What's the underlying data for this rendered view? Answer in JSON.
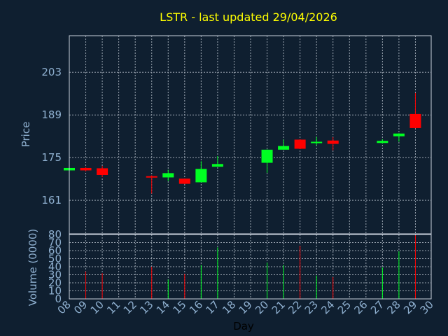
{
  "colors": {
    "background": "#0f1f30",
    "frame": "#c8d0dc",
    "grid": "#9aa4b0",
    "up": "#00ff22",
    "down": "#ff0000",
    "title": "#ffff00",
    "tick_label": "#8fb0d0"
  },
  "chart_data": {
    "type": "candlestick",
    "title": "LSTR - last updated 29/04/2026",
    "xlabel": "Day",
    "price_axis": {
      "label": "Price",
      "ticks": [
        161,
        175,
        189,
        203
      ],
      "ylim": [
        150,
        215
      ]
    },
    "volume_axis": {
      "label": "Volume (0000)",
      "ticks": [
        0,
        10,
        20,
        30,
        40,
        50,
        60,
        70,
        80
      ],
      "ylim": [
        0,
        80
      ]
    },
    "x_ticks": [
      "08",
      "09",
      "10",
      "11",
      "12",
      "13",
      "14",
      "15",
      "16",
      "17",
      "18",
      "19",
      "20",
      "21",
      "22",
      "23",
      "24",
      "25",
      "26",
      "27",
      "28",
      "29",
      "30"
    ],
    "grid": true,
    "candles": [
      {
        "day": "08",
        "open": 170.8,
        "close": 171.6,
        "high": 171.8,
        "low": 170.6,
        "volume": 0
      },
      {
        "day": "09",
        "open": 171.6,
        "close": 170.8,
        "high": 171.9,
        "low": 170.5,
        "volume": 34
      },
      {
        "day": "10",
        "open": 171.5,
        "close": 169.3,
        "high": 172.3,
        "low": 168.6,
        "volume": 32
      },
      {
        "day": "13",
        "open": 168.9,
        "close": 168.5,
        "high": 169.2,
        "low": 163.2,
        "volume": 40
      },
      {
        "day": "14",
        "open": 168.5,
        "close": 169.9,
        "high": 171.0,
        "low": 167.3,
        "volume": 24
      },
      {
        "day": "15",
        "open": 168.1,
        "close": 166.4,
        "high": 168.1,
        "low": 166.3,
        "volume": 31
      },
      {
        "day": "16",
        "open": 166.9,
        "close": 171.3,
        "high": 173.8,
        "low": 166.9,
        "volume": 42
      },
      {
        "day": "17",
        "open": 172.0,
        "close": 172.9,
        "high": 175.5,
        "low": 172.0,
        "volume": 64
      },
      {
        "day": "20",
        "open": 173.3,
        "close": 177.6,
        "high": 177.7,
        "low": 170.0,
        "volume": 45
      },
      {
        "day": "21",
        "open": 177.6,
        "close": 178.8,
        "high": 180.9,
        "low": 177.6,
        "volume": 42
      },
      {
        "day": "22",
        "open": 180.9,
        "close": 177.9,
        "high": 181.0,
        "low": 177.8,
        "volume": 66
      },
      {
        "day": "23",
        "open": 179.8,
        "close": 180.2,
        "high": 181.8,
        "low": 179.1,
        "volume": 29
      },
      {
        "day": "24",
        "open": 180.6,
        "close": 179.5,
        "high": 181.7,
        "low": 177.4,
        "volume": 27
      },
      {
        "day": "27",
        "open": 179.8,
        "close": 180.5,
        "high": 181.0,
        "low": 179.6,
        "volume": 39
      },
      {
        "day": "28",
        "open": 182.0,
        "close": 182.9,
        "high": 183.0,
        "low": 180.2,
        "volume": 59
      },
      {
        "day": "29",
        "open": 189.3,
        "close": 184.7,
        "high": 196.2,
        "low": 184.6,
        "volume": 79
      }
    ]
  }
}
